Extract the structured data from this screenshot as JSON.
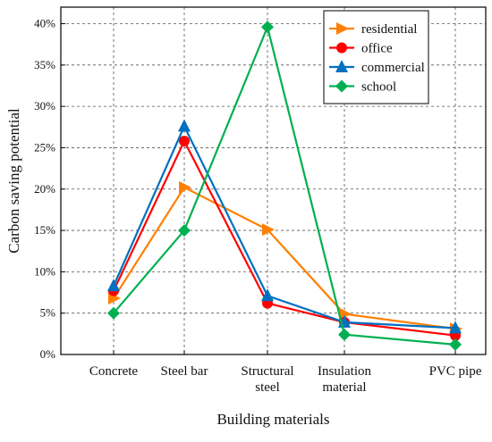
{
  "chart_data": {
    "type": "line",
    "xlabel": "Building materials",
    "ylabel": "Carbon saving potential",
    "categories": [
      [
        "Concrete"
      ],
      [
        "Steel bar"
      ],
      [
        "Structural",
        "steel"
      ],
      [
        "Insulation",
        "material"
      ],
      [
        "PVC pipe"
      ]
    ],
    "y_ticks": [
      "0%",
      "5%",
      "10%",
      "15%",
      "20%",
      "25%",
      "30%",
      "35%",
      "40%"
    ],
    "ylim": [
      0,
      0.42
    ],
    "grid": "dashed",
    "legend_position": "top-right",
    "series": [
      {
        "name": "residential",
        "color": "#ff8000",
        "marker": "triangle-right",
        "values": [
          0.068,
          0.202,
          0.151,
          0.049,
          0.031
        ]
      },
      {
        "name": "office",
        "color": "#ff0000",
        "marker": "circle",
        "values": [
          0.077,
          0.258,
          0.062,
          0.039,
          0.023
        ]
      },
      {
        "name": "commercial",
        "color": "#0070c0",
        "marker": "triangle-up",
        "values": [
          0.083,
          0.276,
          0.071,
          0.039,
          0.032
        ]
      },
      {
        "name": "school",
        "color": "#00b050",
        "marker": "diamond",
        "values": [
          0.05,
          0.15,
          0.396,
          0.024,
          0.012
        ]
      }
    ]
  }
}
